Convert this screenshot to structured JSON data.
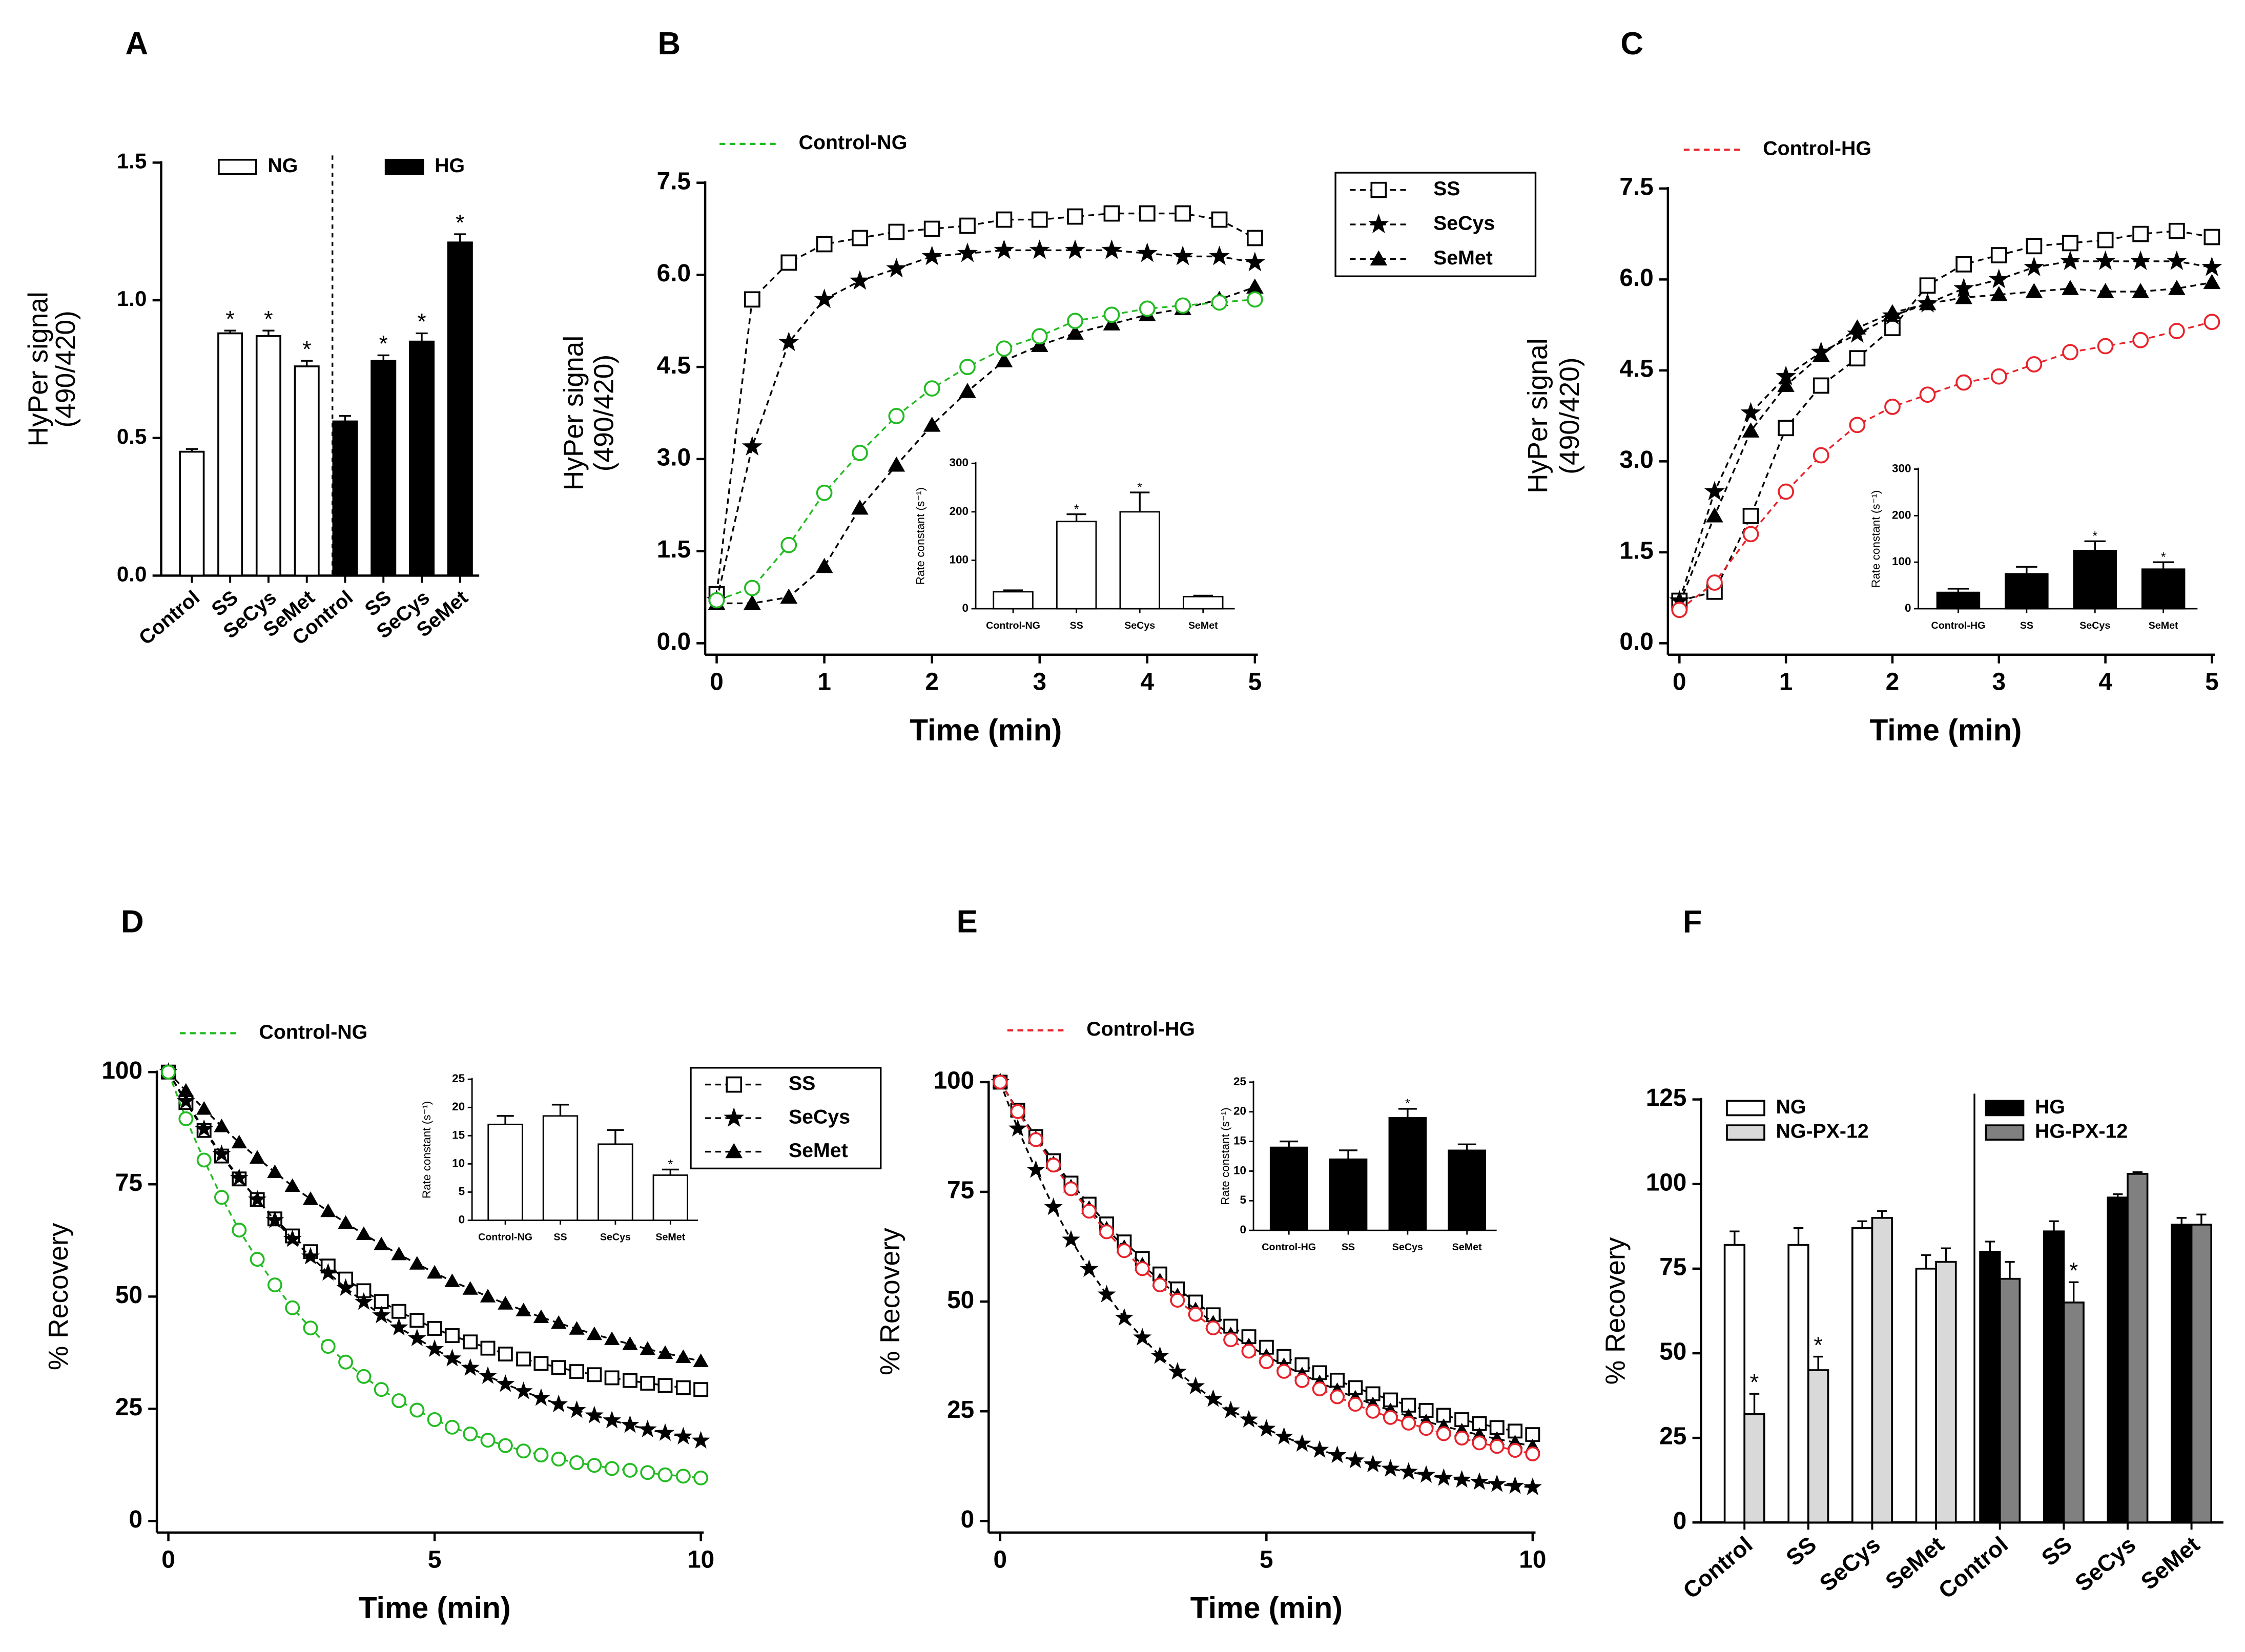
{
  "chart_data": [
    {
      "type": "bar",
      "panel": "A",
      "ylabel": [
        "HyPer signal",
        "(490/420)"
      ],
      "categories": [
        "Control",
        "SS",
        "SeCys",
        "SeMet",
        "Control",
        "SS",
        "SeCys",
        "SeMet"
      ],
      "series": [
        {
          "name": "NG",
          "color": "#ffffff",
          "values": [
            0.45,
            0.88,
            0.87,
            0.76,
            null,
            null,
            null,
            null
          ],
          "errors": [
            0.01,
            0.01,
            0.02,
            0.02,
            null,
            null,
            null,
            null
          ],
          "labels": [
            null,
            "*",
            "*",
            "*",
            null,
            null,
            null,
            null
          ]
        },
        {
          "name": "HG",
          "color": "#000000",
          "values": [
            null,
            null,
            null,
            null,
            0.56,
            0.78,
            0.85,
            1.21
          ],
          "errors": [
            null,
            null,
            null,
            null,
            0.02,
            0.02,
            0.03,
            0.03
          ],
          "labels": [
            null,
            null,
            null,
            null,
            null,
            "*",
            "*",
            "*"
          ]
        }
      ],
      "ylim": [
        0,
        1.5
      ],
      "yticks": [
        {
          "value": 0,
          "label": "0.0"
        },
        {
          "value": 0.5,
          "label": "0.5"
        },
        {
          "value": 1,
          "label": "1.0"
        },
        {
          "value": 1.5,
          "label": "1.5"
        }
      ]
    },
    {
      "type": "line",
      "panel": "B",
      "ylabel": [
        "HyPer signal",
        "(490/420)"
      ],
      "xlabel": "Time (min)",
      "x": [
        0,
        0.33,
        0.67,
        1,
        1.33,
        1.67,
        2,
        2.33,
        2.67,
        3,
        3.33,
        3.67,
        4,
        4.33,
        4.67,
        5
      ],
      "series": [
        {
          "name": "SS",
          "color": "#000000",
          "marker": "square",
          "values": [
            0.8,
            5.6,
            6.2,
            6.5,
            6.6,
            6.7,
            6.75,
            6.8,
            6.9,
            6.9,
            6.95,
            7.0,
            7.0,
            7.0,
            6.9,
            6.6
          ]
        },
        {
          "name": "SeCys",
          "color": "#000000",
          "marker": "star",
          "values": [
            0.7,
            3.2,
            4.9,
            5.6,
            5.9,
            6.1,
            6.3,
            6.35,
            6.4,
            6.4,
            6.4,
            6.4,
            6.35,
            6.3,
            6.3,
            6.2
          ]
        },
        {
          "name": "SeMet",
          "color": "#000000",
          "marker": "triangle",
          "values": [
            0.65,
            0.65,
            0.75,
            1.25,
            2.2,
            2.9,
            3.55,
            4.1,
            4.6,
            4.85,
            5.05,
            5.2,
            5.35,
            5.45,
            5.6,
            5.8
          ]
        },
        {
          "name": "Control-NG",
          "color": "#22bb22",
          "marker": "circle",
          "values": [
            0.7,
            0.9,
            1.6,
            2.45,
            3.1,
            3.7,
            4.15,
            4.5,
            4.8,
            5.0,
            5.25,
            5.35,
            5.45,
            5.5,
            5.55,
            5.6
          ]
        }
      ],
      "xlim": [
        0,
        5
      ],
      "xticks": [
        0,
        1,
        2,
        3,
        4,
        5
      ],
      "ylim": [
        0,
        7.5
      ],
      "yticks": [
        {
          "value": 0,
          "label": "0.0"
        },
        {
          "value": 1.5,
          "label": "1.5"
        },
        {
          "value": 3,
          "label": "3.0"
        },
        {
          "value": 4.5,
          "label": "4.5"
        },
        {
          "value": 6,
          "label": "6.0"
        },
        {
          "value": 7.5,
          "label": "7.5"
        }
      ]
    },
    {
      "type": "bar",
      "ylabel": "Rate constant (s⁻¹)",
      "categories": [
        "Control-NG",
        "SS",
        "SeCys",
        "SeMet"
      ],
      "color": "#ffffff",
      "values": [
        35,
        180,
        200,
        25
      ],
      "errors": [
        3,
        15,
        40,
        2
      ],
      "labels": [
        null,
        "*",
        "*",
        null
      ],
      "ylim": [
        0,
        300
      ],
      "yticks": [
        0,
        100,
        200,
        300
      ]
    },
    {
      "type": "line",
      "panel": "C",
      "ylabel": [
        "HyPer signal",
        "(490/420)"
      ],
      "xlabel": "Time (min)",
      "x": [
        0,
        0.33,
        0.67,
        1,
        1.33,
        1.67,
        2,
        2.33,
        2.67,
        3,
        3.33,
        3.67,
        4,
        4.33,
        4.67,
        5
      ],
      "series": [
        {
          "name": "SS",
          "color": "#000000",
          "marker": "square",
          "values": [
            0.7,
            0.85,
            2.1,
            3.55,
            4.25,
            4.7,
            5.2,
            5.9,
            6.25,
            6.4,
            6.55,
            6.6,
            6.65,
            6.75,
            6.8,
            6.7
          ]
        },
        {
          "name": "SeCys",
          "color": "#000000",
          "marker": "star",
          "values": [
            0.7,
            2.5,
            3.8,
            4.4,
            4.8,
            5.1,
            5.4,
            5.6,
            5.85,
            6.0,
            6.2,
            6.3,
            6.3,
            6.3,
            6.3,
            6.2
          ]
        },
        {
          "name": "SeMet",
          "color": "#000000",
          "marker": "triangle",
          "values": [
            0.65,
            2.1,
            3.5,
            4.25,
            4.75,
            5.2,
            5.45,
            5.6,
            5.7,
            5.75,
            5.8,
            5.85,
            5.8,
            5.8,
            5.85,
            5.95
          ]
        },
        {
          "name": "Control-HG",
          "color": "#e8222a",
          "marker": "circle",
          "values": [
            0.55,
            1.0,
            1.8,
            2.5,
            3.1,
            3.6,
            3.9,
            4.1,
            4.3,
            4.4,
            4.6,
            4.8,
            4.9,
            5.0,
            5.15,
            5.3
          ]
        }
      ],
      "xlim": [
        0,
        5
      ],
      "xticks": [
        0,
        1,
        2,
        3,
        4,
        5
      ],
      "ylim": [
        0,
        7.5
      ],
      "yticks": [
        {
          "value": 0,
          "label": "0.0"
        },
        {
          "value": 1.5,
          "label": "1.5"
        },
        {
          "value": 3,
          "label": "3.0"
        },
        {
          "value": 4.5,
          "label": "4.5"
        },
        {
          "value": 6,
          "label": "6.0"
        },
        {
          "value": 7.5,
          "label": "7.5"
        }
      ]
    },
    {
      "type": "bar",
      "ylabel": "Rate constant (s⁻¹)",
      "categories": [
        "Control-HG",
        "SS",
        "SeCys",
        "SeMet"
      ],
      "color": "#000000",
      "values": [
        35,
        75,
        125,
        85
      ],
      "errors": [
        8,
        15,
        20,
        15
      ],
      "labels": [
        null,
        null,
        "*",
        "*"
      ],
      "ylim": [
        0,
        300
      ],
      "yticks": [
        0,
        100,
        200,
        300
      ]
    },
    {
      "type": "line",
      "panel": "D",
      "ylabel": "% Recovery",
      "xlabel": "Time (min)",
      "x": [
        0,
        0.33,
        0.67,
        1,
        1.33,
        1.67,
        2,
        2.33,
        2.67,
        3,
        3.33,
        3.67,
        4,
        4.33,
        4.67,
        5,
        5.33,
        5.67,
        6,
        6.33,
        6.67,
        7,
        7.33,
        7.67,
        8,
        8.33,
        8.67,
        9,
        9.33,
        9.67,
        10
      ],
      "series": [
        {
          "name": "SS",
          "color": "#000000",
          "marker": "square",
          "values": [
            100,
            93.2,
            87.0,
            81.3,
            76.2,
            71.6,
            67.3,
            63.5,
            60.0,
            56.8,
            53.9,
            51.3,
            48.9,
            46.7,
            44.7,
            42.9,
            41.3,
            39.9,
            38.5,
            37.2,
            36.1,
            35.1,
            34.2,
            33.3,
            32.6,
            31.9,
            31.3,
            30.7,
            30.2,
            29.7,
            29.3
          ]
        },
        {
          "name": "SeCys",
          "color": "#000000",
          "marker": "star",
          "values": [
            100,
            93.5,
            87.3,
            81.7,
            76.4,
            71.6,
            67.0,
            62.8,
            58.9,
            55.3,
            51.9,
            48.8,
            45.8,
            43.1,
            40.7,
            38.3,
            36.2,
            34.1,
            32.3,
            30.5,
            28.9,
            27.4,
            26.0,
            24.7,
            23.5,
            22.4,
            21.4,
            20.4,
            19.6,
            18.8,
            17.9
          ]
        },
        {
          "name": "SeMet",
          "color": "#000000",
          "marker": "triangle",
          "values": [
            100,
            95.8,
            91.8,
            87.9,
            84.3,
            80.9,
            77.7,
            74.6,
            71.7,
            69.0,
            66.4,
            63.9,
            61.6,
            59.4,
            57.3,
            55.3,
            53.4,
            51.7,
            50.0,
            48.4,
            46.9,
            45.4,
            44.1,
            42.8,
            41.6,
            40.5,
            39.4,
            38.3,
            37.4,
            36.5,
            35.6
          ]
        },
        {
          "name": "Control-NG",
          "color": "#22bb22",
          "marker": "circle",
          "values": [
            100,
            89.6,
            80.4,
            72.1,
            64.8,
            58.3,
            52.6,
            47.5,
            43.0,
            38.9,
            35.4,
            32.2,
            29.3,
            26.8,
            24.7,
            22.6,
            20.9,
            19.4,
            18.0,
            16.8,
            15.6,
            14.7,
            13.8,
            13.0,
            12.4,
            11.7,
            11.3,
            10.8,
            10.3,
            10.0,
            9.6
          ]
        }
      ],
      "xlim": [
        0,
        10
      ],
      "xticks": [
        0,
        5,
        10
      ],
      "ylim": [
        0,
        100
      ],
      "yticks": [
        0,
        25,
        50,
        75,
        100
      ]
    },
    {
      "type": "bar",
      "ylabel": "Rate constant (s⁻¹)",
      "categories": [
        "Control-NG",
        "SS",
        "SeCys",
        "SeMet"
      ],
      "color": "#ffffff",
      "values": [
        17,
        18.5,
        13.5,
        8
      ],
      "errors": [
        1.5,
        2,
        2.5,
        1
      ],
      "labels": [
        null,
        null,
        null,
        "*"
      ],
      "ylim": [
        0,
        25
      ],
      "yticks": [
        0,
        5,
        10,
        15,
        20,
        25
      ]
    },
    {
      "type": "line",
      "panel": "E",
      "ylabel": "% Recovery",
      "xlabel": "Time (min)",
      "x": [
        0,
        0.33,
        0.67,
        1,
        1.33,
        1.67,
        2,
        2.33,
        2.67,
        3,
        3.33,
        3.67,
        4,
        4.33,
        4.67,
        5,
        5.33,
        5.67,
        6,
        6.33,
        6.67,
        7,
        7.33,
        7.67,
        8,
        8.33,
        8.67,
        9,
        9.33,
        9.67,
        10
      ],
      "series": [
        {
          "name": "SS",
          "color": "#000000",
          "marker": "square",
          "values": [
            100,
            93.6,
            87.6,
            82.1,
            77.0,
            72.2,
            67.7,
            63.6,
            59.8,
            56.3,
            52.9,
            49.9,
            47.0,
            44.4,
            42.0,
            39.6,
            37.5,
            35.6,
            33.8,
            32.1,
            30.4,
            29.0,
            27.6,
            26.4,
            25.2,
            24.1,
            23.1,
            22.2,
            21.3,
            20.5,
            19.7
          ]
        },
        {
          "name": "SeCys",
          "color": "#000000",
          "marker": "star",
          "values": [
            100,
            89.4,
            80.0,
            71.5,
            64.1,
            57.4,
            51.6,
            46.3,
            41.8,
            37.6,
            34.0,
            30.7,
            27.8,
            25.2,
            23.1,
            21.0,
            19.2,
            17.6,
            16.2,
            15.0,
            13.8,
            12.9,
            11.9,
            11.2,
            10.5,
            9.8,
            9.4,
            8.9,
            8.4,
            8.0,
            7.7
          ]
        },
        {
          "name": "SeMet",
          "color": "#000000",
          "marker": "triangle",
          "values": [
            100,
            93.4,
            87.2,
            81.5,
            76.2,
            71.3,
            66.6,
            62.4,
            58.4,
            54.8,
            51.4,
            48.2,
            45.2,
            42.5,
            40.0,
            37.6,
            35.5,
            33.4,
            31.6,
            29.8,
            28.1,
            26.6,
            25.2,
            23.9,
            22.7,
            21.6,
            20.6,
            19.6,
            18.7,
            17.9,
            17.0
          ]
        },
        {
          "name": "Control-HG",
          "color": "#e8222a",
          "marker": "circle",
          "values": [
            100,
            93.3,
            86.9,
            81.1,
            75.7,
            70.6,
            65.9,
            61.6,
            57.5,
            53.8,
            50.3,
            47.1,
            44.0,
            41.3,
            38.7,
            36.3,
            34.1,
            32.0,
            30.1,
            28.3,
            26.6,
            25.0,
            23.6,
            22.3,
            21.1,
            19.9,
            18.9,
            17.8,
            17.0,
            16.1,
            15.3
          ]
        }
      ],
      "xlim": [
        0,
        10
      ],
      "xticks": [
        0,
        5,
        10
      ],
      "ylim": [
        0,
        100
      ],
      "yticks": [
        0,
        25,
        50,
        75,
        100
      ]
    },
    {
      "type": "bar",
      "ylabel": "Rate constant (s⁻¹)",
      "categories": [
        "Control-HG",
        "SS",
        "SeCys",
        "SeMet"
      ],
      "color": "#000000",
      "values": [
        14,
        12,
        19,
        13.5
      ],
      "errors": [
        1,
        1.5,
        1.5,
        1
      ],
      "labels": [
        null,
        null,
        "*",
        null
      ],
      "ylim": [
        0,
        25
      ],
      "yticks": [
        0,
        5,
        10,
        15,
        20,
        25
      ]
    },
    {
      "type": "bar",
      "panel": "F",
      "ylabel": "% Recovery",
      "categories": [
        "Control",
        "SS",
        "SeCys",
        "SeMet",
        "Control",
        "SS",
        "SeCys",
        "SeMet"
      ],
      "series": [
        {
          "name": "NG",
          "color": "#ffffff",
          "values": [
            82,
            82,
            87,
            75,
            null,
            null,
            null,
            null
          ],
          "errors": [
            4,
            5,
            2,
            4,
            null,
            null,
            null,
            null
          ],
          "labels": [
            null,
            null,
            null,
            null,
            null,
            null,
            null,
            null
          ]
        },
        {
          "name": "NG-PX-12",
          "color": "#d9d9d9",
          "values": [
            32,
            45,
            90,
            77,
            null,
            null,
            null,
            null
          ],
          "errors": [
            6,
            4,
            2,
            4,
            null,
            null,
            null,
            null
          ],
          "labels": [
            "*",
            "*",
            null,
            null,
            null,
            null,
            null,
            null
          ]
        },
        {
          "name": "HG",
          "color": "#000000",
          "values": [
            null,
            null,
            null,
            null,
            80,
            86,
            96,
            88
          ],
          "errors": [
            null,
            null,
            null,
            null,
            3,
            3,
            1,
            2
          ],
          "labels": [
            null,
            null,
            null,
            null,
            null,
            null,
            null,
            null
          ]
        },
        {
          "name": "HG-PX-12",
          "color": "#808080",
          "values": [
            null,
            null,
            null,
            null,
            72,
            65,
            103,
            88
          ],
          "errors": [
            null,
            null,
            null,
            null,
            5,
            6,
            0.5,
            3
          ],
          "labels": [
            null,
            null,
            null,
            null,
            null,
            "*",
            null,
            null
          ]
        }
      ],
      "ylim": [
        0,
        125
      ],
      "yticks": [
        0,
        25,
        50,
        75,
        100,
        125
      ]
    }
  ]
}
